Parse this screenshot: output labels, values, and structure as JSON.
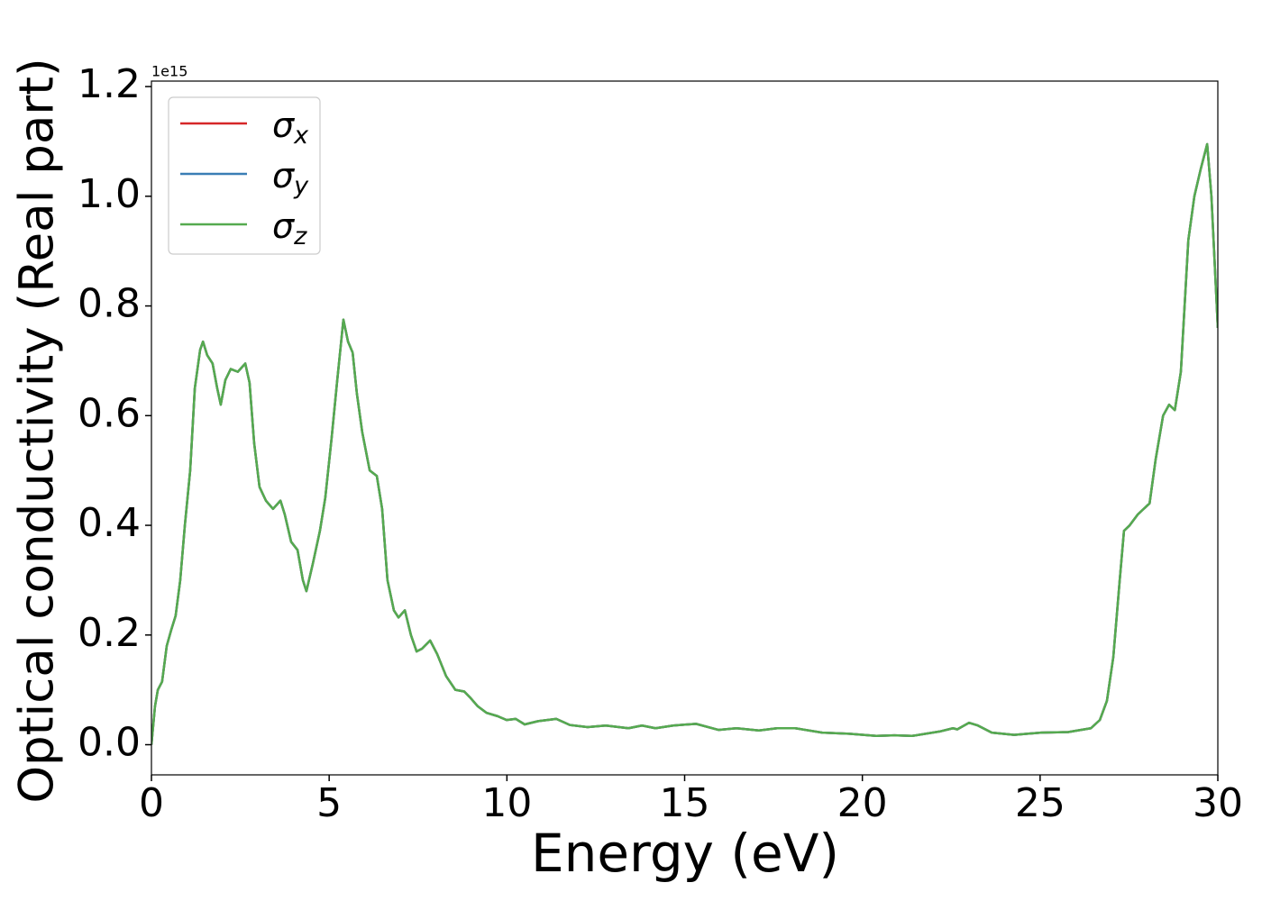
{
  "chart_data": {
    "type": "line",
    "xlabel": "Energy (eV)",
    "ylabel": "Optical conductivity (Real part)",
    "y_offset_text": "1e15",
    "xlim": [
      0,
      30
    ],
    "xticks": [
      0,
      5,
      10,
      15,
      20,
      25,
      30
    ],
    "ylim": [
      -0.055,
      1.21
    ],
    "yticks": [
      {
        "value": 0,
        "label": "0.0"
      },
      0.2,
      0.4,
      0.6,
      0.8,
      {
        "value": 1,
        "label": "1.0"
      },
      1.2
    ],
    "legend": "upper left",
    "x": [
      0,
      0.1,
      0.18,
      0.3,
      0.43,
      0.56,
      0.68,
      0.81,
      0.94,
      1.09,
      1.22,
      1.37,
      1.45,
      1.57,
      1.72,
      1.85,
      1.95,
      2.08,
      2.23,
      2.43,
      2.64,
      2.76,
      2.89,
      3.04,
      3.22,
      3.42,
      3.63,
      3.75,
      3.93,
      4.11,
      4.26,
      4.36,
      4.54,
      4.74,
      4.89,
      5.07,
      5.22,
      5.4,
      5.53,
      5.66,
      5.78,
      5.93,
      6.14,
      6.34,
      6.49,
      6.64,
      6.82,
      6.95,
      7.13,
      7.3,
      7.46,
      7.61,
      7.84,
      8.04,
      8.29,
      8.55,
      8.8,
      8.98,
      9.18,
      9.43,
      9.74,
      9.99,
      10.25,
      10.5,
      10.88,
      11.39,
      11.77,
      12.27,
      12.78,
      13.42,
      13.8,
      14.18,
      14.68,
      15.32,
      15.95,
      16.46,
      17.09,
      17.6,
      18.11,
      18.87,
      19.63,
      20.39,
      20.9,
      21.4,
      22.17,
      22.55,
      22.67,
      23.0,
      23.25,
      23.64,
      24.27,
      25.03,
      25.79,
      26.43,
      26.68,
      26.88,
      27.06,
      27.24,
      27.36,
      27.52,
      27.75,
      28.08,
      28.25,
      28.46,
      28.63,
      28.79,
      28.96,
      29.17,
      29.34,
      29.52,
      29.7,
      29.82,
      30.0
    ],
    "series": [
      {
        "name": "σx",
        "color": "#d62728",
        "values": [
          0,
          0.07,
          0.1,
          0.115,
          0.18,
          0.21,
          0.235,
          0.3,
          0.4,
          0.5,
          0.65,
          0.72,
          0.735,
          0.71,
          0.695,
          0.65,
          0.62,
          0.665,
          0.685,
          0.68,
          0.695,
          0.66,
          0.55,
          0.47,
          0.445,
          0.43,
          0.445,
          0.42,
          0.37,
          0.355,
          0.3,
          0.28,
          0.33,
          0.39,
          0.45,
          0.56,
          0.66,
          0.775,
          0.735,
          0.715,
          0.64,
          0.57,
          0.5,
          0.49,
          0.43,
          0.3,
          0.245,
          0.232,
          0.245,
          0.2,
          0.17,
          0.175,
          0.19,
          0.165,
          0.125,
          0.1,
          0.097,
          0.085,
          0.07,
          0.058,
          0.052,
          0.045,
          0.047,
          0.037,
          0.043,
          0.047,
          0.036,
          0.032,
          0.035,
          0.03,
          0.035,
          0.03,
          0.035,
          0.038,
          0.027,
          0.03,
          0.026,
          0.03,
          0.03,
          0.022,
          0.02,
          0.016,
          0.017,
          0.016,
          0.024,
          0.03,
          0.028,
          0.04,
          0.035,
          0.022,
          0.018,
          0.022,
          0.023,
          0.03,
          0.045,
          0.08,
          0.16,
          0.3,
          0.39,
          0.4,
          0.42,
          0.44,
          0.52,
          0.6,
          0.62,
          0.61,
          0.68,
          0.92,
          1.0,
          1.05,
          1.095,
          1.0,
          0.76
        ]
      },
      {
        "name": "σy",
        "color": "#3a7eb5",
        "values": [
          0,
          0.07,
          0.1,
          0.115,
          0.18,
          0.21,
          0.235,
          0.3,
          0.4,
          0.5,
          0.65,
          0.72,
          0.735,
          0.71,
          0.695,
          0.65,
          0.62,
          0.665,
          0.685,
          0.68,
          0.695,
          0.66,
          0.55,
          0.47,
          0.445,
          0.43,
          0.445,
          0.42,
          0.37,
          0.355,
          0.3,
          0.28,
          0.33,
          0.39,
          0.45,
          0.56,
          0.66,
          0.775,
          0.735,
          0.715,
          0.64,
          0.57,
          0.5,
          0.49,
          0.43,
          0.3,
          0.245,
          0.232,
          0.245,
          0.2,
          0.17,
          0.175,
          0.19,
          0.165,
          0.125,
          0.1,
          0.097,
          0.085,
          0.07,
          0.058,
          0.052,
          0.045,
          0.047,
          0.037,
          0.043,
          0.047,
          0.036,
          0.032,
          0.035,
          0.03,
          0.035,
          0.03,
          0.035,
          0.038,
          0.027,
          0.03,
          0.026,
          0.03,
          0.03,
          0.022,
          0.02,
          0.016,
          0.017,
          0.016,
          0.024,
          0.03,
          0.028,
          0.04,
          0.035,
          0.022,
          0.018,
          0.022,
          0.023,
          0.03,
          0.045,
          0.08,
          0.16,
          0.3,
          0.39,
          0.4,
          0.42,
          0.44,
          0.52,
          0.6,
          0.62,
          0.61,
          0.68,
          0.92,
          1.0,
          1.05,
          1.095,
          1.0,
          0.76
        ]
      },
      {
        "name": "σz",
        "color": "#55aa4f",
        "values": [
          0,
          0.07,
          0.1,
          0.115,
          0.18,
          0.21,
          0.235,
          0.3,
          0.4,
          0.5,
          0.65,
          0.72,
          0.735,
          0.71,
          0.695,
          0.65,
          0.62,
          0.665,
          0.685,
          0.68,
          0.695,
          0.66,
          0.55,
          0.47,
          0.445,
          0.43,
          0.445,
          0.42,
          0.37,
          0.355,
          0.3,
          0.28,
          0.33,
          0.39,
          0.45,
          0.56,
          0.66,
          0.775,
          0.735,
          0.715,
          0.64,
          0.57,
          0.5,
          0.49,
          0.43,
          0.3,
          0.245,
          0.232,
          0.245,
          0.2,
          0.17,
          0.175,
          0.19,
          0.165,
          0.125,
          0.1,
          0.097,
          0.085,
          0.07,
          0.058,
          0.052,
          0.045,
          0.047,
          0.037,
          0.043,
          0.047,
          0.036,
          0.032,
          0.035,
          0.03,
          0.035,
          0.03,
          0.035,
          0.038,
          0.027,
          0.03,
          0.026,
          0.03,
          0.03,
          0.022,
          0.02,
          0.016,
          0.017,
          0.016,
          0.024,
          0.03,
          0.028,
          0.04,
          0.035,
          0.022,
          0.018,
          0.022,
          0.023,
          0.03,
          0.045,
          0.08,
          0.16,
          0.3,
          0.39,
          0.4,
          0.42,
          0.44,
          0.52,
          0.6,
          0.62,
          0.61,
          0.68,
          0.92,
          1.0,
          1.05,
          1.095,
          1.0,
          0.76
        ]
      }
    ]
  }
}
